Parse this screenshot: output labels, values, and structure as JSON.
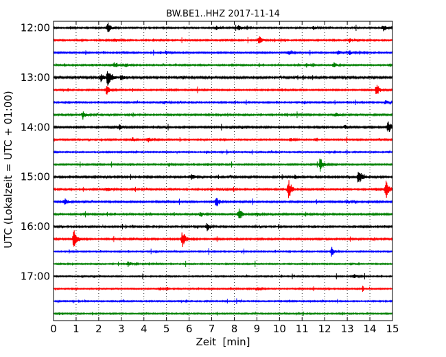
{
  "chart_data": {
    "type": "line",
    "title": "BW.BE1..HHZ 2017-11-14",
    "xlabel": "Zeit  [min]",
    "ylabel": "UTC (Lokalzeit = UTC + 01:00)",
    "xlim": [
      0,
      15
    ],
    "x_ticks": [
      "0",
      "1",
      "2",
      "3",
      "4",
      "5",
      "6",
      "7",
      "8",
      "9",
      "10",
      "11",
      "12",
      "13",
      "14",
      "15"
    ],
    "y_ticks": [
      "12:00",
      "13:00",
      "14:00",
      "15:00",
      "16:00",
      "17:00"
    ],
    "grid": "x-dotted",
    "series_colors": [
      "#000000",
      "#ff0000",
      "#0000ff",
      "#008000"
    ],
    "traces": [
      {
        "start": "12:00",
        "color": "#000000",
        "amp": 0.9,
        "events": [
          {
            "t": 2.4,
            "a": 8
          },
          {
            "t": 7.2,
            "a": 3
          },
          {
            "t": 8.2,
            "a": 4
          },
          {
            "t": 11.5,
            "a": 2.5
          },
          {
            "t": 14.6,
            "a": 5
          }
        ]
      },
      {
        "start": "12:15",
        "color": "#ff0000",
        "amp": 0.9,
        "events": [
          {
            "t": 2.7,
            "a": 2.5
          },
          {
            "t": 9.1,
            "a": 6
          },
          {
            "t": 13.1,
            "a": 3
          }
        ]
      },
      {
        "start": "12:30",
        "color": "#0000ff",
        "amp": 0.9,
        "events": [
          {
            "t": 5.0,
            "a": 3
          },
          {
            "t": 10.4,
            "a": 3
          },
          {
            "t": 12.6,
            "a": 3
          },
          {
            "t": 13.1,
            "a": 3
          }
        ]
      },
      {
        "start": "12:45",
        "color": "#008000",
        "amp": 0.9,
        "events": [
          {
            "t": 2.7,
            "a": 4
          },
          {
            "t": 3.2,
            "a": 3
          },
          {
            "t": 11.2,
            "a": 3
          },
          {
            "t": 12.4,
            "a": 4
          }
        ]
      },
      {
        "start": "13:00",
        "color": "#000000",
        "amp": 1.2,
        "events": [
          {
            "t": 2.1,
            "a": 6
          },
          {
            "t": 2.4,
            "a": 14
          },
          {
            "t": 3.0,
            "a": 4
          }
        ]
      },
      {
        "start": "13:15",
        "color": "#ff0000",
        "amp": 0.9,
        "events": [
          {
            "t": 2.35,
            "a": 7
          },
          {
            "t": 14.3,
            "a": 9
          }
        ]
      },
      {
        "start": "13:30",
        "color": "#0000ff",
        "amp": 0.9,
        "events": [
          {
            "t": 4.9,
            "a": 2.5
          },
          {
            "t": 14.7,
            "a": 3
          }
        ]
      },
      {
        "start": "13:45",
        "color": "#008000",
        "amp": 1.0,
        "events": [
          {
            "t": 1.3,
            "a": 5
          },
          {
            "t": 12.5,
            "a": 3
          }
        ]
      },
      {
        "start": "14:00",
        "color": "#000000",
        "amp": 1.1,
        "events": [
          {
            "t": 2.9,
            "a": 4
          },
          {
            "t": 12.9,
            "a": 3
          },
          {
            "t": 14.8,
            "a": 11
          }
        ]
      },
      {
        "start": "14:15",
        "color": "#ff0000",
        "amp": 0.9,
        "events": [
          {
            "t": 3.5,
            "a": 3
          },
          {
            "t": 4.2,
            "a": 3
          },
          {
            "t": 10.5,
            "a": 3
          }
        ]
      },
      {
        "start": "14:30",
        "color": "#0000ff",
        "amp": 0.8,
        "events": []
      },
      {
        "start": "14:45",
        "color": "#008000",
        "amp": 0.9,
        "events": [
          {
            "t": 5.1,
            "a": 3
          },
          {
            "t": 11.8,
            "a": 10
          }
        ]
      },
      {
        "start": "15:00",
        "color": "#000000",
        "amp": 1.1,
        "events": [
          {
            "t": 6.1,
            "a": 4
          },
          {
            "t": 10.7,
            "a": 3
          },
          {
            "t": 13.5,
            "a": 12
          }
        ]
      },
      {
        "start": "15:15",
        "color": "#ff0000",
        "amp": 1.0,
        "events": [
          {
            "t": 2.4,
            "a": 3
          },
          {
            "t": 10.4,
            "a": 16
          },
          {
            "t": 14.7,
            "a": 15
          }
        ]
      },
      {
        "start": "15:30",
        "color": "#0000ff",
        "amp": 1.0,
        "events": [
          {
            "t": 0.5,
            "a": 5
          },
          {
            "t": 7.2,
            "a": 9
          },
          {
            "t": 13.0,
            "a": 3
          }
        ]
      },
      {
        "start": "15:45",
        "color": "#008000",
        "amp": 1.0,
        "events": [
          {
            "t": 6.5,
            "a": 4
          },
          {
            "t": 8.2,
            "a": 9
          },
          {
            "t": 9.0,
            "a": 3
          }
        ]
      },
      {
        "start": "16:00",
        "color": "#000000",
        "amp": 1.0,
        "events": [
          {
            "t": 6.8,
            "a": 6
          }
        ]
      },
      {
        "start": "16:15",
        "color": "#ff0000",
        "amp": 1.0,
        "events": [
          {
            "t": 0.9,
            "a": 15
          },
          {
            "t": 5.7,
            "a": 13
          }
        ]
      },
      {
        "start": "16:30",
        "color": "#0000ff",
        "amp": 0.8,
        "events": [
          {
            "t": 12.3,
            "a": 7
          }
        ]
      },
      {
        "start": "16:45",
        "color": "#008000",
        "amp": 0.8,
        "events": [
          {
            "t": 3.3,
            "a": 4
          }
        ]
      },
      {
        "start": "17:00",
        "color": "#000000",
        "amp": 0.8,
        "events": [
          {
            "t": 13.3,
            "a": 3
          }
        ]
      },
      {
        "start": "17:15",
        "color": "#ff0000",
        "amp": 0.8,
        "events": [
          {
            "t": 4.7,
            "a": 2.5
          },
          {
            "t": 9.0,
            "a": 3
          }
        ]
      },
      {
        "start": "17:30",
        "color": "#0000ff",
        "amp": 0.8,
        "events": []
      },
      {
        "start": "17:45",
        "color": "#008000",
        "amp": 0.8,
        "events": []
      }
    ]
  }
}
